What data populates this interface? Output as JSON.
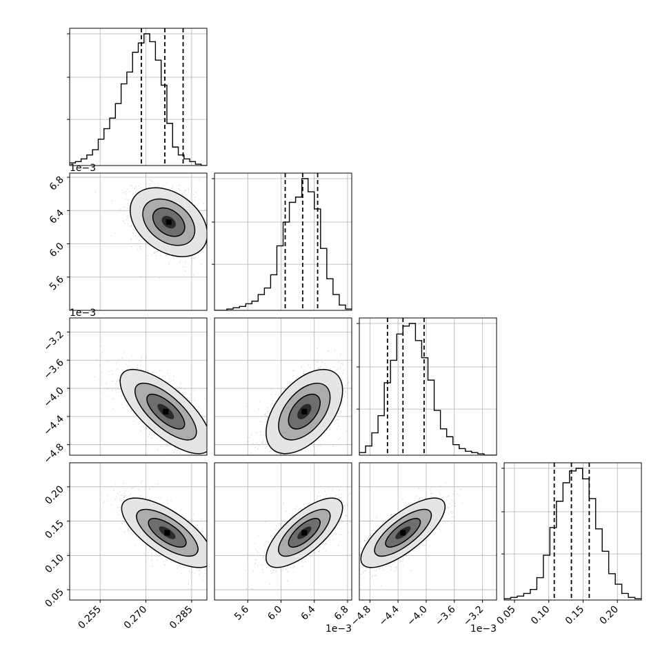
{
  "chart_data": {
    "type": "corner",
    "description_free": true,
    "params": [
      {
        "id": "p0",
        "range": [
          0.245,
          0.29
        ],
        "ticks": [
          "0.255",
          "0.270",
          "0.285"
        ],
        "tick_values": [
          0.255,
          0.27,
          0.285
        ],
        "offset_label": "",
        "quantiles": [
          0.2685,
          0.2762,
          0.2822
        ],
        "hist": [
          0.02,
          0.03,
          0.05,
          0.08,
          0.12,
          0.2,
          0.28,
          0.36,
          0.47,
          0.62,
          0.71,
          0.86,
          0.93,
          1.0,
          0.94,
          0.8,
          0.61,
          0.32,
          0.14,
          0.08,
          0.05,
          0.03,
          0.01,
          0.0
        ]
      },
      {
        "id": "p1",
        "range": [
          5.2,
          6.85
        ],
        "ticks": [
          "5.6",
          "6.0",
          "6.4",
          "6.8"
        ],
        "tick_values": [
          5.6,
          6.0,
          6.4,
          6.8
        ],
        "offset_label": "1e−3",
        "quantiles": [
          6.05,
          6.26,
          6.44
        ],
        "hist": [
          0.0,
          0.0,
          0.01,
          0.02,
          0.03,
          0.05,
          0.07,
          0.12,
          0.17,
          0.27,
          0.49,
          0.67,
          0.82,
          0.86,
          1.0,
          0.9,
          0.77,
          0.47,
          0.24,
          0.12,
          0.04,
          0.01
        ]
      },
      {
        "id": "p2",
        "range": [
          -4.95,
          -3.0
        ],
        "ticks": [
          "−4.8",
          "−4.4",
          "−4.0",
          "−3.6",
          "−3.2"
        ],
        "tick_values": [
          -4.8,
          -4.4,
          -4.0,
          -3.6,
          -3.2
        ],
        "offset_label": "1e−3",
        "quantiles": [
          -4.55,
          -4.33,
          -4.03
        ],
        "hist": [
          0.02,
          0.07,
          0.17,
          0.3,
          0.55,
          0.72,
          0.92,
          0.98,
          1.0,
          0.87,
          0.74,
          0.57,
          0.34,
          0.2,
          0.14,
          0.08,
          0.05,
          0.03,
          0.02,
          0.01,
          0.0,
          0.0
        ]
      },
      {
        "id": "p3",
        "range": [
          0.035,
          0.235
        ],
        "ticks": [
          "0.05",
          "0.10",
          "0.15",
          "0.20"
        ],
        "tick_values": [
          0.05,
          0.1,
          0.15,
          0.2
        ],
        "offset_label": "",
        "quantiles": [
          0.108,
          0.133,
          0.159
        ],
        "hist": [
          0.01,
          0.02,
          0.03,
          0.05,
          0.08,
          0.17,
          0.34,
          0.55,
          0.75,
          0.89,
          0.98,
          1.0,
          0.92,
          0.77,
          0.54,
          0.37,
          0.2,
          0.12,
          0.05,
          0.02,
          0.01
        ]
      }
    ],
    "hist_yticks": [
      0.35,
      0.67,
      1.0
    ],
    "offset_labels_top": [
      {
        "row": 1,
        "text": "1e−3"
      },
      {
        "row": 2,
        "text": "1e−3"
      }
    ],
    "pairs": [
      {
        "row": 1,
        "col": 0,
        "mean": [
          0.2775,
          6.26
        ],
        "sd": [
          0.0055,
          0.18
        ],
        "rho": -0.35
      },
      {
        "row": 2,
        "col": 0,
        "mean": [
          0.2765,
          -4.33
        ],
        "sd": [
          0.0065,
          0.26
        ],
        "rho": -0.72
      },
      {
        "row": 2,
        "col": 1,
        "mean": [
          6.28,
          -4.33
        ],
        "sd": [
          0.2,
          0.26
        ],
        "rho": 0.5
      },
      {
        "row": 3,
        "col": 0,
        "mean": [
          0.277,
          0.133
        ],
        "sd": [
          0.0065,
          0.022
        ],
        "rho": -0.7
      },
      {
        "row": 3,
        "col": 1,
        "mean": [
          6.28,
          0.133
        ],
        "sd": [
          0.2,
          0.022
        ],
        "rho": 0.72
      },
      {
        "row": 3,
        "col": 2,
        "mean": [
          -4.33,
          0.133
        ],
        "sd": [
          0.26,
          0.022
        ],
        "rho": 0.75
      }
    ],
    "colors": {
      "line": "#000000",
      "grid": "#b0b0b0",
      "points": "#999999",
      "fill_dark": "#2a2a2a"
    }
  }
}
